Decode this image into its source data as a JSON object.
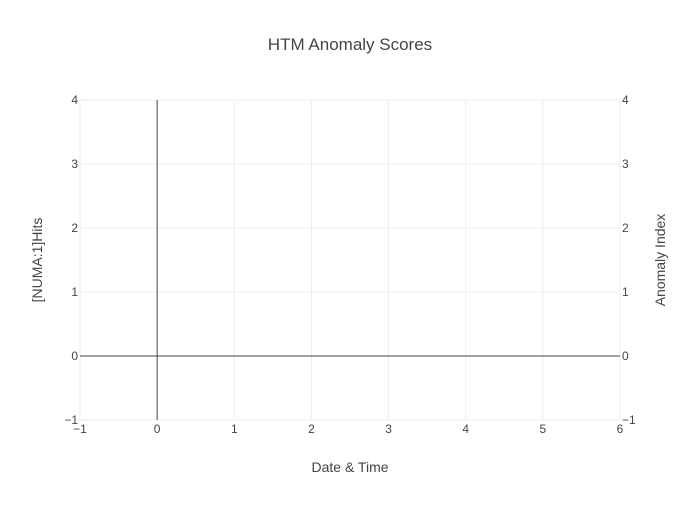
{
  "chart_data": {
    "type": "line",
    "title": "HTM Anomaly Scores",
    "xlabel": "Date & Time",
    "ylabel": "[NUMA:1]Hits",
    "y2label": "Anomaly Index",
    "xlim": [
      -1,
      6
    ],
    "ylim": [
      -1,
      4
    ],
    "y2lim": [
      -1,
      4
    ],
    "x_ticks": [
      "−1",
      "0",
      "1",
      "2",
      "3",
      "4",
      "5",
      "6"
    ],
    "y_ticks": [
      "−1",
      "0",
      "1",
      "2",
      "3",
      "4"
    ],
    "y2_ticks": [
      "−1",
      "0",
      "1",
      "2",
      "3",
      "4"
    ],
    "grid": true,
    "zero_lines": true,
    "series": [],
    "colors": {
      "text": "#444444",
      "secondary_axis": "#9467bd",
      "grid": "#eeeeee",
      "zero_line": "#444444"
    }
  }
}
